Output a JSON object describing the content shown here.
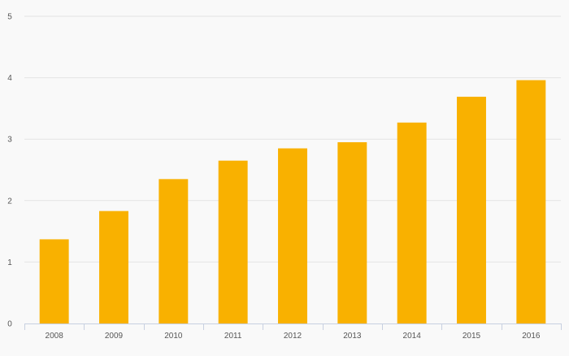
{
  "chart_data": {
    "type": "bar",
    "categories": [
      "2008",
      "2009",
      "2010",
      "2011",
      "2012",
      "2013",
      "2014",
      "2015",
      "2016"
    ],
    "values": [
      1.37,
      1.83,
      2.35,
      2.65,
      2.85,
      2.95,
      3.27,
      3.69,
      3.96
    ],
    "ylim": [
      0,
      5
    ],
    "yticks": [
      "0",
      "1",
      "2",
      "3",
      "4",
      "5"
    ],
    "grid": true,
    "legend": "none"
  },
  "colors": {
    "bar": "#f9b100",
    "grid": "#e4e4e4",
    "axis": "#c8d0e0",
    "background": "#f9f9f9"
  }
}
